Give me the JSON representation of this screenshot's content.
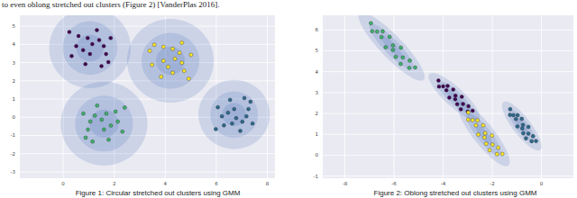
{
  "text": "to even oblong stretched out clusters (Figure 2) [VanderPlas 2016].",
  "chart_data": [
    {
      "type": "scatter",
      "title": "Figure 1: Circular stretched out clusters using GMM",
      "xlim": [
        -1.7,
        8.3
      ],
      "xticks": [
        0,
        2,
        4,
        6,
        8
      ],
      "ylim": [
        -3.35,
        5.6
      ],
      "yticks": [
        -3,
        -2,
        -1,
        0,
        1,
        2,
        3,
        4,
        5
      ],
      "grid": true,
      "marker": "circle",
      "series": [
        {
          "color": "#440154",
          "x": [
            1.14,
            0.6,
            1.68,
            0.33,
            1.32,
            0.87,
            1.86,
            0.51,
            1.5,
            1.05,
            0.24,
            1.41,
            0.78,
            1.77,
            0.96,
            1.59
          ],
          "values": [
            4.02,
            4.46,
            3.47,
            3.36,
            4.79,
            2.92,
            4.35,
            3.91,
            2.81,
            3.47,
            4.68,
            4.24,
            3.69,
            3.03,
            4.35,
            3.91
          ],
          "ellipse": {
            "center": [
              1.05,
              3.8
            ],
            "u": [
              1.6,
              0
            ],
            "v": [
              0,
              2.2
            ]
          }
        },
        {
          "color": "#fde725",
          "x": [
            4.38,
            4.74,
            3.93,
            3.84,
            5.01,
            3.48,
            4.65,
            4.29,
            3.39,
            3.93,
            4.92,
            4.56,
            4.11,
            3.57,
            4.65,
            4.29
          ],
          "values": [
            3.21,
            2.55,
            3.87,
            2.22,
            3.43,
            2.88,
            4.09,
            2.44,
            3.65,
            3.1,
            2.11,
            3.54,
            2.77,
            3.98,
            2.99,
            3.76
          ],
          "ellipse": {
            "center": [
              4.2,
              3.1
            ],
            "u": [
              1.7,
              0
            ],
            "v": [
              0,
              2.3
            ]
          }
        },
        {
          "color": "#3db36b",
          "x": [
            1.51,
            2.05,
            0.97,
            2.32,
            1.33,
            1.78,
            0.79,
            2.14,
            1.15,
            1.6,
            2.41,
            1.24,
            1.87,
            0.88,
            1.69,
            1.06
          ],
          "values": [
            -0.13,
            0.31,
            -0.68,
            -0.79,
            0.64,
            -1.23,
            0.2,
            -0.24,
            -1.34,
            -0.68,
            0.53,
            0.09,
            -0.46,
            -1.12,
            0.2,
            -0.24
          ],
          "ellipse": {
            "center": [
              1.6,
              -0.35
            ],
            "u": [
              1.7,
              0
            ],
            "v": [
              0,
              2.3
            ]
          }
        },
        {
          "color": "#2c6a8e",
          "x": [
            6.78,
            6.3,
            7.26,
            6.06,
            6.94,
            6.54,
            7.42,
            6.22,
            7.1,
            6.7,
            5.98,
            7.02,
            6.46,
            7.34,
            6.62,
            7.18
          ],
          "values": [
            -0.05,
            -0.45,
            0.45,
            0.55,
            -0.75,
            0.95,
            -0.35,
            0.05,
            1.05,
            0.45,
            -0.65,
            -0.25,
            0.25,
            0.85,
            -0.35,
            0.05
          ],
          "ellipse": {
            "center": [
              6.7,
              0.15
            ],
            "u": [
              1.4,
              0
            ],
            "v": [
              0,
              1.9
            ]
          }
        }
      ]
    },
    {
      "type": "scatter",
      "title": "Figure 2: Oblong stretched out clusters using GMM",
      "xlim": [
        -8.9,
        1.3
      ],
      "xticks": [
        -8,
        -6,
        -4,
        -2,
        0
      ],
      "ylim": [
        -1.1,
        6.7
      ],
      "yticks": [
        -1,
        0,
        1,
        2,
        3,
        4,
        5,
        6
      ],
      "grid": true,
      "marker": "circle",
      "series": [
        {
          "color": "#3db36b",
          "x": [
            -6.94,
            -6.89,
            -6.46,
            -6.51,
            -6.18,
            -6.34,
            -6.04,
            -6.04,
            -5.72,
            -5.93,
            -5.64,
            -5.73,
            -5.36,
            -5.38,
            -5.14,
            -6.69
          ],
          "values": [
            6.32,
            5.94,
            5.93,
            5.66,
            5.67,
            5.17,
            5.26,
            5.04,
            5.15,
            4.71,
            4.68,
            4.37,
            4.53,
            4.18,
            4.2,
            5.92
          ],
          "ellipse": {
            "center": [
              -6.1,
              5.2
            ],
            "u": [
              1.3,
              -1.6
            ],
            "v": [
              0.35,
              0.35
            ]
          }
        },
        {
          "color": "#440154",
          "x": [
            -4.19,
            -4.17,
            -3.82,
            -3.87,
            -3.59,
            -3.75,
            -3.5,
            -3.51,
            -3.24,
            -3.43,
            -3.19,
            -3.28,
            -2.97,
            -3.0,
            -2.8,
            -4.0
          ],
          "values": [
            3.58,
            3.29,
            3.32,
            3.11,
            3.15,
            2.76,
            2.85,
            2.68,
            2.8,
            2.44,
            2.45,
            2.2,
            2.35,
            2.09,
            2.13,
            3.3
          ],
          "ellipse": {
            "center": [
              -3.55,
              2.8
            ],
            "u": [
              1.0,
              -1.1
            ],
            "v": [
              0.3,
              0.3
            ]
          }
        },
        {
          "color": "#fde725",
          "x": [
            -2.98,
            -2.98,
            -2.6,
            -2.67,
            -2.37,
            -2.57,
            -2.29,
            -2.32,
            -2.01,
            -2.25,
            -1.99,
            -2.11,
            -1.76,
            -1.81,
            -1.59,
            -2.8
          ],
          "values": [
            2.05,
            1.7,
            1.67,
            1.43,
            1.43,
            0.99,
            1.05,
            0.85,
            0.94,
            0.55,
            0.51,
            0.24,
            0.36,
            0.05,
            0.06,
            1.68
          ],
          "ellipse": {
            "center": [
              -2.35,
              1.0
            ],
            "u": [
              1.0,
              -1.5
            ],
            "v": [
              0.35,
              0.3
            ]
          }
        },
        {
          "color": "#2c6a8e",
          "x": [
            -1.27,
            -1.28,
            -0.97,
            -1.04,
            -0.8,
            -0.98,
            -0.75,
            -0.78,
            -0.53,
            -0.74,
            -0.53,
            -0.63,
            -0.34,
            -0.4,
            -0.22,
            -1.14
          ],
          "values": [
            2.21,
            1.93,
            1.92,
            1.73,
            1.74,
            1.38,
            1.45,
            1.28,
            1.36,
            1.05,
            1.03,
            0.81,
            0.91,
            0.67,
            0.68,
            1.92
          ],
          "ellipse": {
            "center": [
              -0.8,
              1.4
            ],
            "u": [
              0.75,
              -1.15
            ],
            "v": [
              0.3,
              0.25
            ]
          }
        }
      ]
    }
  ]
}
